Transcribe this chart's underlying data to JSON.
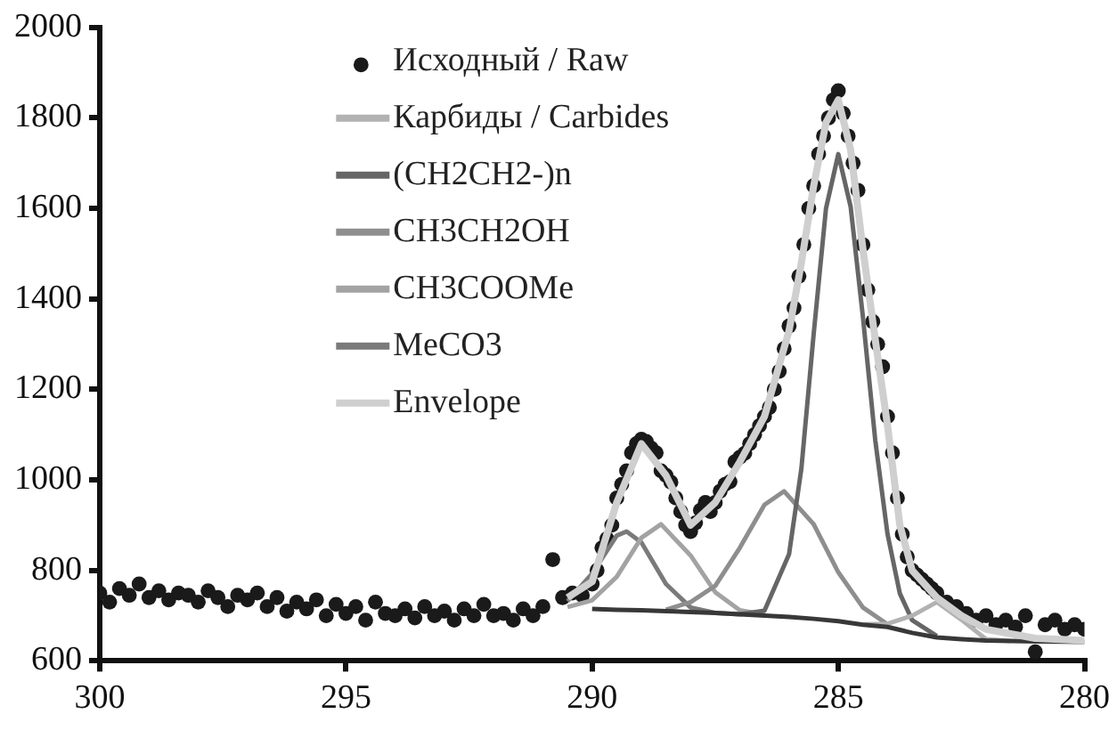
{
  "chart_data": {
    "type": "line",
    "xlim": [
      300,
      280
    ],
    "xticks": [
      300,
      295,
      290,
      285,
      280
    ],
    "ylim": [
      600,
      2000
    ],
    "yticks": [
      600,
      800,
      1000,
      1200,
      1400,
      1600,
      1800,
      2000
    ],
    "grid": false,
    "legend": "top",
    "line_style": "solid",
    "series": [
      {
        "name": "Envelope",
        "marker": "none",
        "color": "#cfcfcf",
        "x": [
          290.5,
          290,
          289.5,
          289,
          288.5,
          288,
          287.5,
          287,
          286.5,
          286,
          285.75,
          285.5,
          285.25,
          285,
          284.75,
          284.5,
          284.25,
          284,
          283.75,
          283.5,
          283,
          282.5,
          282,
          281,
          280
        ],
        "values": [
          740,
          775,
          950,
          1080,
          1010,
          900,
          950,
          1040,
          1140,
          1330,
          1480,
          1650,
          1790,
          1840,
          1730,
          1510,
          1310,
          1120,
          900,
          800,
          740,
          700,
          670,
          650,
          645
        ]
      },
      {
        "name": null,
        "marker": "none",
        "color": "#383838",
        "x": [
          290,
          289.5,
          289,
          288.5,
          288,
          287.5,
          287,
          286.5,
          286,
          285.5,
          285,
          284.5,
          284,
          283.5,
          283,
          282.5,
          282,
          281,
          280
        ],
        "values": [
          715,
          713,
          712,
          710,
          708,
          706,
          703,
          700,
          697,
          693,
          688,
          680,
          675,
          662,
          652,
          648,
          645,
          643,
          642
        ]
      },
      {
        "name": "Карбиды / Carbides",
        "marker": "none",
        "color": "#b2b2b2",
        "x": [
          284.5,
          284,
          283.5,
          283,
          282.5,
          282,
          281.5
        ],
        "values": [
          681,
          682,
          700,
          730,
          691,
          648,
          644
        ]
      },
      {
        "name": "(CH2CH2-)n",
        "marker": "none",
        "color": "#666666",
        "x": [
          287,
          286.5,
          286,
          285.75,
          285.5,
          285.25,
          285,
          284.75,
          284.5,
          284.25,
          284,
          283.75,
          283.5,
          283
        ],
        "values": [
          703,
          711,
          836,
          1025,
          1323,
          1600,
          1720,
          1604,
          1360,
          1088,
          880,
          749,
          690,
          655
        ]
      },
      {
        "name": "CH3CH2OH",
        "marker": "none",
        "color": "#8e8e8e",
        "x": [
          288.5,
          288,
          287.5,
          287,
          286.5,
          286.1,
          285.5,
          285,
          284.5,
          284
        ],
        "values": [
          713,
          730,
          766,
          850,
          945,
          975,
          902,
          796,
          718,
          681
        ]
      },
      {
        "name": "CH3COOMe",
        "marker": "none",
        "color": "#a3a3a3",
        "x": [
          290.5,
          290,
          289.5,
          289,
          288.6,
          288,
          287.5,
          287,
          286.5
        ],
        "values": [
          719,
          734,
          786,
          872,
          902,
          833,
          752,
          712,
          702
        ]
      },
      {
        "name": "MeCO3",
        "marker": "none",
        "color": "#7a7a7a",
        "x": [
          290.5,
          290,
          289.5,
          289.3,
          289,
          288.5,
          288,
          287.5,
          287
        ],
        "values": [
          732,
          793,
          877,
          886,
          862,
          770,
          718,
          706,
          703
        ]
      },
      {
        "name": "Исходный / Raw",
        "type": "scatter",
        "marker": "circle",
        "color": "#1a1a1a",
        "x": [
          300,
          299.8,
          299.6,
          299.4,
          299.2,
          299,
          298.8,
          298.6,
          298.4,
          298.2,
          298,
          297.8,
          297.6,
          297.4,
          297.2,
          297,
          296.8,
          296.6,
          296.4,
          296.2,
          296,
          295.8,
          295.6,
          295.4,
          295.2,
          295,
          294.8,
          294.6,
          294.4,
          294.2,
          294,
          293.8,
          293.6,
          293.4,
          293.2,
          293,
          292.8,
          292.6,
          292.4,
          292.2,
          292,
          291.8,
          291.6,
          291.4,
          291.2,
          291,
          290.8,
          290.6,
          290.4,
          290.2,
          290,
          289.9,
          289.8,
          289.7,
          289.6,
          289.5,
          289.4,
          289.3,
          289.2,
          289.1,
          289,
          288.9,
          288.8,
          288.7,
          288.6,
          288.5,
          288.4,
          288.3,
          288.2,
          288.1,
          288,
          287.9,
          287.8,
          287.7,
          287.6,
          287.5,
          287.4,
          287.3,
          287.2,
          287.1,
          287,
          286.9,
          286.8,
          286.7,
          286.6,
          286.5,
          286.4,
          286.3,
          286.2,
          286.1,
          286,
          285.9,
          285.8,
          285.7,
          285.6,
          285.5,
          285.4,
          285.3,
          285.2,
          285.1,
          285,
          284.9,
          284.8,
          284.7,
          284.6,
          284.5,
          284.4,
          284.3,
          284.2,
          284.1,
          284,
          283.9,
          283.8,
          283.7,
          283.6,
          283.5,
          283.4,
          283.3,
          283.2,
          283.1,
          283,
          282.8,
          282.6,
          282.4,
          282.2,
          282,
          281.8,
          281.6,
          281.4,
          281.2,
          281,
          280.8,
          280.6,
          280.4,
          280.2,
          280
        ],
        "values": [
          750,
          730,
          760,
          745,
          770,
          740,
          755,
          735,
          750,
          745,
          730,
          755,
          740,
          720,
          745,
          735,
          750,
          720,
          740,
          710,
          730,
          715,
          735,
          700,
          725,
          705,
          720,
          690,
          730,
          705,
          700,
          715,
          695,
          720,
          700,
          710,
          690,
          715,
          700,
          725,
          700,
          705,
          690,
          715,
          700,
          720,
          824,
          740,
          750,
          745,
          770,
          800,
          850,
          870,
          900,
          960,
          990,
          1020,
          1060,
          1080,
          1090,
          1085,
          1070,
          1060,
          1020,
          1010,
          995,
          960,
          930,
          900,
          886,
          905,
          933,
          950,
          930,
          950,
          975,
          990,
          996,
          1040,
          1050,
          1059,
          1080,
          1100,
          1120,
          1140,
          1160,
          1200,
          1240,
          1290,
          1340,
          1380,
          1450,
          1520,
          1600,
          1650,
          1720,
          1760,
          1800,
          1840,
          1860,
          1810,
          1760,
          1700,
          1640,
          1520,
          1420,
          1350,
          1300,
          1250,
          1140,
          1060,
          960,
          880,
          830,
          800,
          790,
          780,
          770,
          760,
          750,
          730,
          720,
          705,
          690,
          700,
          680,
          690,
          675,
          700,
          620,
          680,
          690,
          670,
          680,
          670
        ]
      }
    ]
  }
}
